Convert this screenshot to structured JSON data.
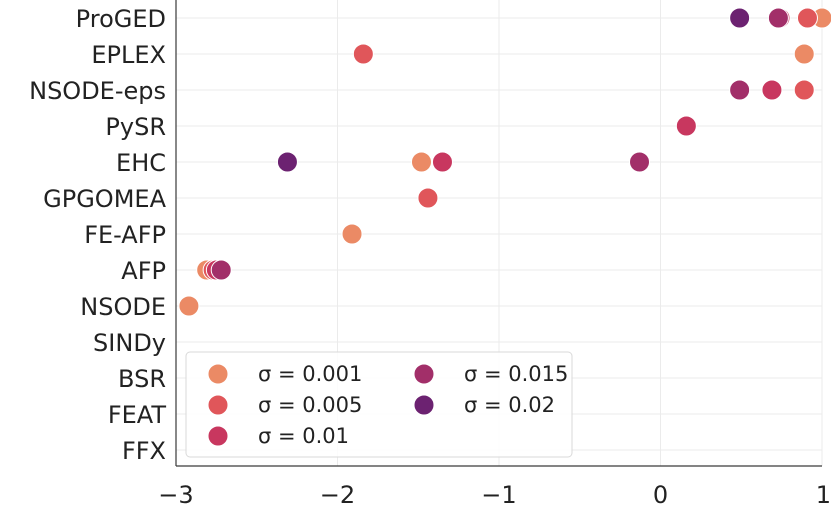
{
  "chart_data": {
    "type": "scatter",
    "categories": [
      "ProGED",
      "EPLEX",
      "NSODE-eps",
      "PySR",
      "EHC",
      "GPGOMEA",
      "FE-AFP",
      "AFP",
      "NSODE",
      "SINDy",
      "BSR",
      "FEAT",
      "FFX"
    ],
    "xlim": [
      -3,
      1
    ],
    "xticks": [
      -3,
      -2,
      -1,
      0,
      1
    ],
    "xtick_labels": [
      "−3",
      "−2",
      "−1",
      "0",
      "1"
    ],
    "grid": true,
    "legend_position": "bottom-left",
    "series": [
      {
        "name": "σ = 0.001",
        "color": "#eb8a65",
        "points": [
          [
            "ProGED",
            1.0
          ],
          [
            "EPLEX",
            0.89
          ],
          [
            "EHC",
            -1.48
          ],
          [
            "FE-AFP",
            -1.91
          ],
          [
            "AFP",
            -2.81
          ],
          [
            "NSODE",
            -2.92
          ]
        ]
      },
      {
        "name": "σ = 0.005",
        "color": "#e0565a",
        "points": [
          [
            "ProGED",
            0.91
          ],
          [
            "EPLEX",
            -1.84
          ],
          [
            "NSODE-eps",
            0.89
          ],
          [
            "GPGOMEA",
            -1.44
          ],
          [
            "AFP",
            -2.77
          ]
        ]
      },
      {
        "name": "σ = 0.01",
        "color": "#c8375f",
        "points": [
          [
            "ProGED",
            0.74
          ],
          [
            "NSODE-eps",
            0.69
          ],
          [
            "PySR",
            0.16
          ],
          [
            "EHC",
            -1.35
          ],
          [
            "AFP",
            -2.75
          ]
        ]
      },
      {
        "name": "σ = 0.015",
        "color": "#a22f69",
        "points": [
          [
            "ProGED",
            0.73
          ],
          [
            "NSODE-eps",
            0.49
          ],
          [
            "EHC",
            -0.13
          ],
          [
            "AFP",
            -2.72
          ]
        ]
      },
      {
        "name": "σ = 0.02",
        "color": "#6c2271",
        "points": [
          [
            "ProGED",
            0.49
          ],
          [
            "EHC",
            -2.31
          ]
        ]
      }
    ]
  }
}
